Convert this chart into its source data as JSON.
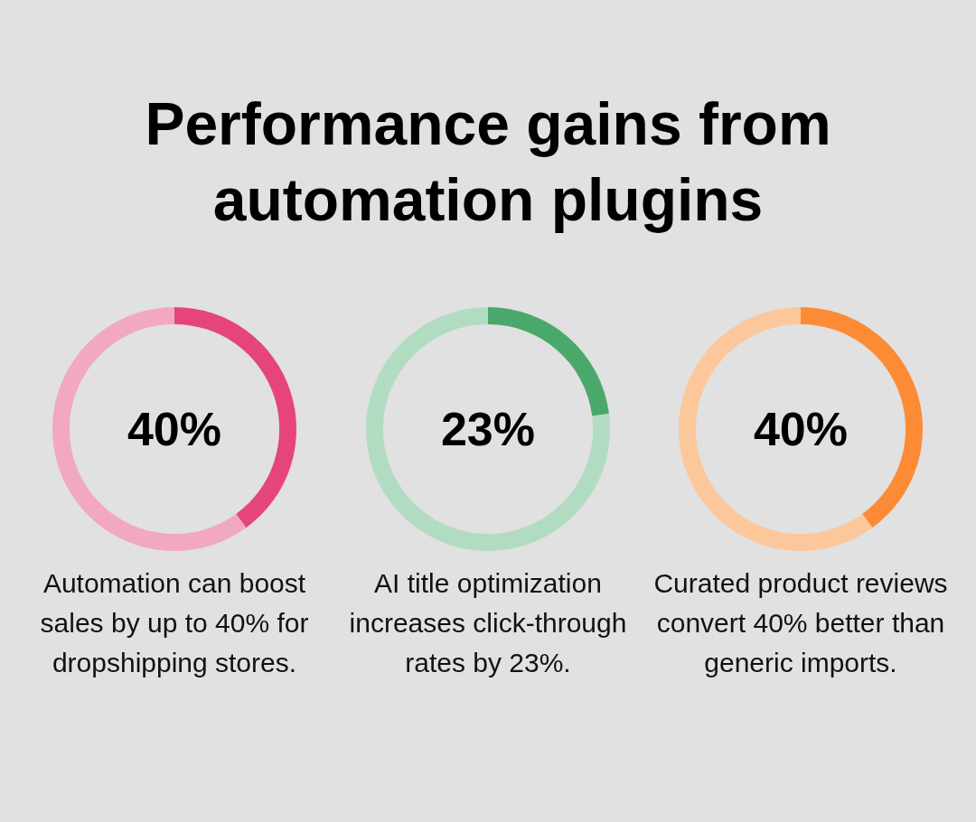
{
  "chart_data": [
    {
      "type": "donut",
      "title": "Performance gains from automation plugins",
      "categories": [
        null,
        null
      ],
      "values": [
        40,
        60
      ],
      "colors": [
        "#e5457a",
        "#f2a8c1"
      ],
      "annotations": [
        "40%",
        "Automation can boost sales by up to 40% for dropshipping stores."
      ]
    },
    {
      "type": "donut",
      "categories": [
        null,
        null
      ],
      "values": [
        23,
        77
      ],
      "colors": [
        "#4ba86b",
        "#b1dcc1"
      ],
      "annotations": [
        "23%",
        "AI title optimization increases click-through rates by 23%."
      ]
    },
    {
      "type": "donut",
      "categories": [
        null,
        null
      ],
      "values": [
        40,
        60
      ],
      "colors": [
        "#fd8b35",
        "#fdc79c"
      ],
      "annotations": [
        "40%",
        "Curated product reviews convert 40% better than generic imports."
      ]
    }
  ]
}
